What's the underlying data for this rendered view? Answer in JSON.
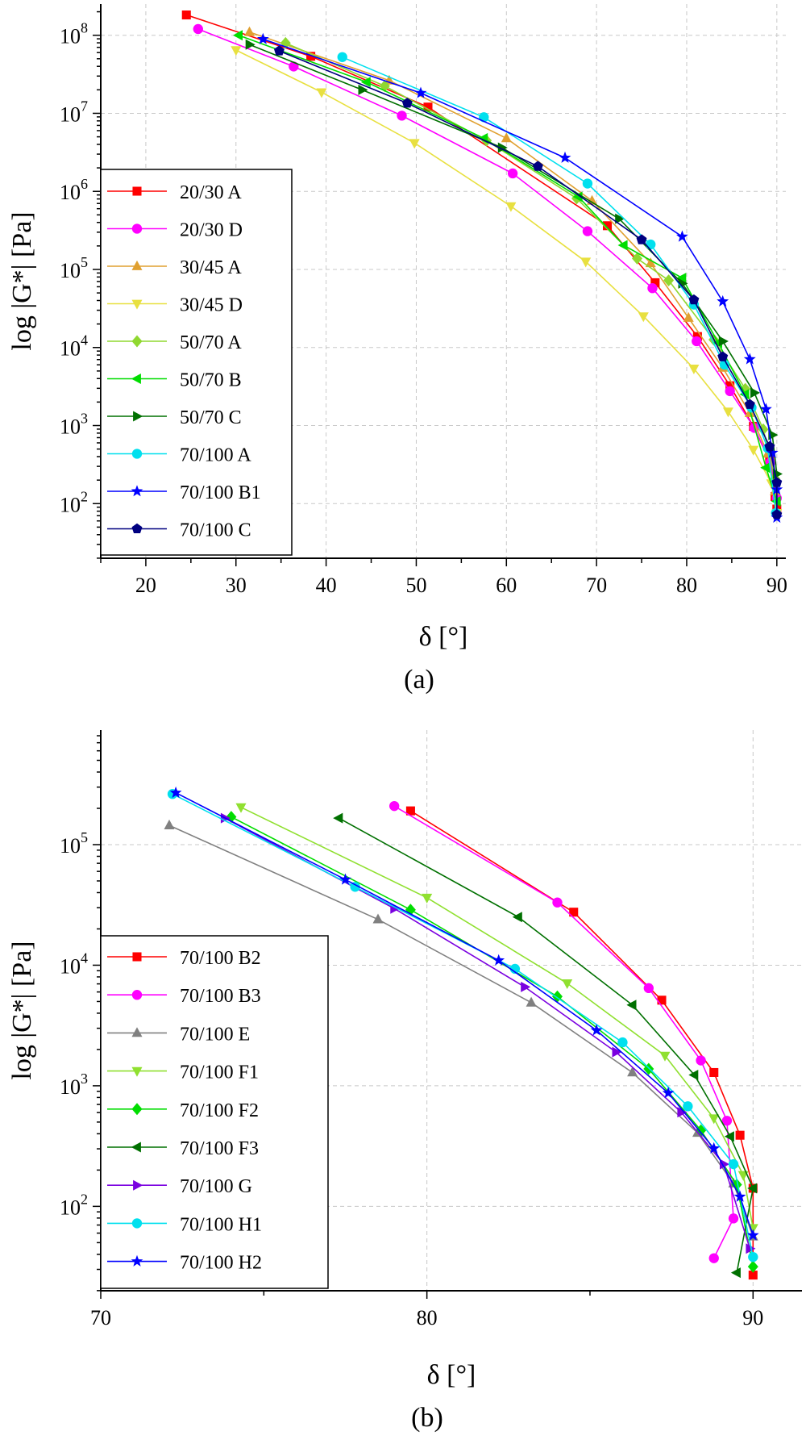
{
  "chart_data": [
    {
      "type": "line",
      "panel_label": "(a)",
      "xlabel": "δ [°]",
      "ylabel": "log |G*| [Pa]",
      "xlim": [
        15,
        91
      ],
      "ylog_range": [
        1.3,
        8.4
      ],
      "x_ticks": [
        "20",
        "30",
        "40",
        "50",
        "60",
        "70",
        "80",
        "90"
      ],
      "x_tick_values": [
        20,
        30,
        40,
        50,
        60,
        70,
        80,
        90
      ],
      "y_tick_values": [
        2,
        3,
        4,
        5,
        6,
        7,
        8
      ],
      "y_ticks": [
        {
          "base": "10",
          "exp": "2"
        },
        {
          "base": "10",
          "exp": "3"
        },
        {
          "base": "10",
          "exp": "4"
        },
        {
          "base": "10",
          "exp": "5"
        },
        {
          "base": "10",
          "exp": "6"
        },
        {
          "base": "10",
          "exp": "7"
        },
        {
          "base": "10",
          "exp": "8"
        }
      ],
      "grid": true,
      "legend_position": "left",
      "series": [
        {
          "name": "20/30 A",
          "color": "#ff0000",
          "marker": "square",
          "x": [
            24.5,
            38.3,
            51.3,
            71.2,
            76.5,
            81.2,
            84.8,
            87.4,
            89.2,
            89.8,
            90.0
          ],
          "y": [
            8.26,
            7.73,
            7.08,
            5.56,
            4.83,
            4.14,
            3.51,
            2.99,
            2.55,
            2.09,
            1.93
          ]
        },
        {
          "name": "20/30 D",
          "color": "#ff00ff",
          "marker": "circle",
          "x": [
            25.8,
            36.4,
            48.4,
            60.7,
            69.0,
            76.2,
            81.1,
            84.8,
            87.5,
            89.3,
            90.0
          ],
          "y": [
            8.08,
            7.6,
            6.97,
            6.23,
            5.49,
            4.76,
            4.08,
            3.44,
            2.97,
            2.53,
            2.07
          ]
        },
        {
          "name": "30/45 A",
          "color": "#e0a030",
          "marker": "triangle-up",
          "x": [
            31.5,
            47.0,
            60.0,
            69.5,
            76.0,
            80.2,
            84.0,
            87.0,
            89.0,
            89.8
          ],
          "y": [
            8.04,
            7.42,
            6.68,
            5.88,
            5.08,
            4.38,
            3.74,
            3.16,
            2.64,
            2.16
          ]
        },
        {
          "name": "30/45 D",
          "color": "#e8e040",
          "marker": "triangle-down",
          "x": [
            30.0,
            39.5,
            49.8,
            60.5,
            68.8,
            75.2,
            80.8,
            84.6,
            87.4,
            89.4,
            90.0
          ],
          "y": [
            7.81,
            7.27,
            6.62,
            5.81,
            5.1,
            4.4,
            3.73,
            3.18,
            2.69,
            2.26,
            1.88
          ]
        },
        {
          "name": "50/70 A",
          "color": "#90d830",
          "marker": "diamond",
          "x": [
            35.5,
            46.5,
            57.8,
            67.8,
            74.5,
            78.0,
            83.0,
            86.5,
            88.5,
            89.8
          ],
          "y": [
            7.9,
            7.35,
            6.65,
            5.91,
            5.14,
            4.86,
            4.1,
            3.47,
            2.95,
            2.32
          ]
        },
        {
          "name": "50/70 B",
          "color": "#00dd00",
          "marker": "triangle-left",
          "x": [
            30.3,
            44.5,
            57.5,
            68.0,
            73.0,
            79.5,
            83.5,
            86.5,
            88.8,
            90.0
          ],
          "y": [
            8.0,
            7.4,
            6.68,
            5.93,
            5.31,
            4.89,
            4.06,
            3.4,
            2.46,
            2.03
          ]
        },
        {
          "name": "50/70 C",
          "color": "#007000",
          "marker": "triangle-right",
          "x": [
            31.5,
            44.0,
            59.5,
            72.5,
            79.5,
            84.0,
            87.5,
            89.5,
            90.0
          ],
          "y": [
            7.88,
            7.3,
            6.56,
            5.65,
            4.82,
            4.08,
            3.42,
            2.88,
            2.38
          ]
        },
        {
          "name": "70/100 A",
          "color": "#00e0ee",
          "marker": "circle",
          "x": [
            41.8,
            57.5,
            69.0,
            76.0,
            80.8,
            84.2,
            87.2,
            89.0,
            89.9
          ],
          "y": [
            7.72,
            6.95,
            6.1,
            5.32,
            4.55,
            3.78,
            3.23,
            2.71,
            1.88
          ]
        },
        {
          "name": "70/100 B1",
          "color": "#0000ff",
          "marker": "star",
          "x": [
            33.0,
            50.5,
            66.5,
            79.5,
            84.0,
            87.0,
            88.8,
            89.5,
            90.0,
            90.0
          ],
          "y": [
            7.95,
            7.26,
            6.43,
            5.42,
            4.59,
            3.85,
            3.21,
            2.65,
            2.18,
            1.82
          ]
        },
        {
          "name": "70/100 C",
          "color": "#000080",
          "marker": "pentagon",
          "x": [
            34.8,
            49.0,
            63.5,
            75.0,
            80.8,
            84.0,
            87.0,
            89.2,
            90.0,
            90.0
          ],
          "y": [
            7.8,
            7.13,
            6.32,
            5.38,
            4.61,
            3.88,
            3.27,
            2.73,
            2.27,
            1.86
          ]
        }
      ]
    },
    {
      "type": "line",
      "panel_label": "(b)",
      "xlabel": "δ [°]",
      "ylabel": "log |G*| [Pa]",
      "xlim": [
        70,
        91.5
      ],
      "ylog_range": [
        1.3,
        5.95
      ],
      "x_ticks": [
        "70",
        "80",
        "90"
      ],
      "x_tick_values": [
        70,
        80,
        90
      ],
      "y_tick_values": [
        2,
        3,
        4,
        5
      ],
      "y_ticks": [
        {
          "base": "10",
          "exp": "2"
        },
        {
          "base": "10",
          "exp": "3"
        },
        {
          "base": "10",
          "exp": "4"
        },
        {
          "base": "10",
          "exp": "5"
        }
      ],
      "grid": true,
      "legend_position": "left",
      "series": [
        {
          "name": "70/100 B2",
          "color": "#ff0000",
          "marker": "square",
          "x": [
            79.5,
            84.5,
            87.2,
            88.8,
            89.6,
            90.0,
            90.0
          ],
          "y": [
            5.28,
            4.44,
            3.71,
            3.11,
            2.59,
            2.15,
            1.43
          ]
        },
        {
          "name": "70/100 B3",
          "color": "#ff00ff",
          "marker": "circle",
          "x": [
            79.0,
            84.0,
            86.8,
            88.4,
            89.2,
            89.4,
            88.8
          ],
          "y": [
            5.32,
            4.52,
            3.81,
            3.21,
            2.71,
            1.9,
            1.57
          ]
        },
        {
          "name": "70/100 E",
          "color": "#808080",
          "marker": "triangle-up",
          "x": [
            72.1,
            78.5,
            83.2,
            86.3,
            88.3,
            89.4,
            90.0
          ],
          "y": [
            5.16,
            4.38,
            3.69,
            3.11,
            2.61,
            2.19,
            1.75
          ]
        },
        {
          "name": "70/100 F1",
          "color": "#90e030",
          "marker": "triangle-down",
          "x": [
            74.3,
            80.0,
            84.3,
            87.3,
            88.8,
            89.7,
            90.0
          ],
          "y": [
            5.31,
            4.56,
            3.85,
            3.25,
            2.73,
            2.26,
            1.82
          ]
        },
        {
          "name": "70/100 F2",
          "color": "#00dd00",
          "marker": "diamond",
          "x": [
            74.0,
            79.5,
            84.0,
            86.8,
            88.4,
            89.5,
            90.0
          ],
          "y": [
            5.23,
            4.46,
            3.74,
            3.14,
            2.63,
            2.18,
            1.5
          ]
        },
        {
          "name": "70/100 F3",
          "color": "#007000",
          "marker": "triangle-left",
          "x": [
            77.3,
            82.8,
            86.3,
            88.2,
            89.3,
            90.0,
            89.5
          ],
          "y": [
            5.22,
            4.4,
            3.67,
            3.09,
            2.58,
            2.15,
            1.45
          ]
        },
        {
          "name": "70/100 G",
          "color": "#7a00e0",
          "marker": "triangle-right",
          "x": [
            73.8,
            79.0,
            83.0,
            85.8,
            87.8,
            89.1,
            89.9
          ],
          "y": [
            5.22,
            4.47,
            3.82,
            3.28,
            2.78,
            2.35,
            1.65
          ]
        },
        {
          "name": "70/100 H1",
          "color": "#00e0ee",
          "marker": "circle",
          "x": [
            72.2,
            77.8,
            82.7,
            86.0,
            88.0,
            89.4,
            90.0
          ],
          "y": [
            5.42,
            4.65,
            3.97,
            3.36,
            2.83,
            2.35,
            1.58
          ]
        },
        {
          "name": "70/100 H2",
          "color": "#0000ff",
          "marker": "star",
          "x": [
            72.3,
            77.5,
            82.2,
            85.2,
            87.4,
            88.8,
            89.6,
            90.0
          ],
          "y": [
            5.43,
            4.71,
            4.04,
            3.46,
            2.94,
            2.48,
            2.08,
            1.76
          ]
        }
      ]
    }
  ]
}
